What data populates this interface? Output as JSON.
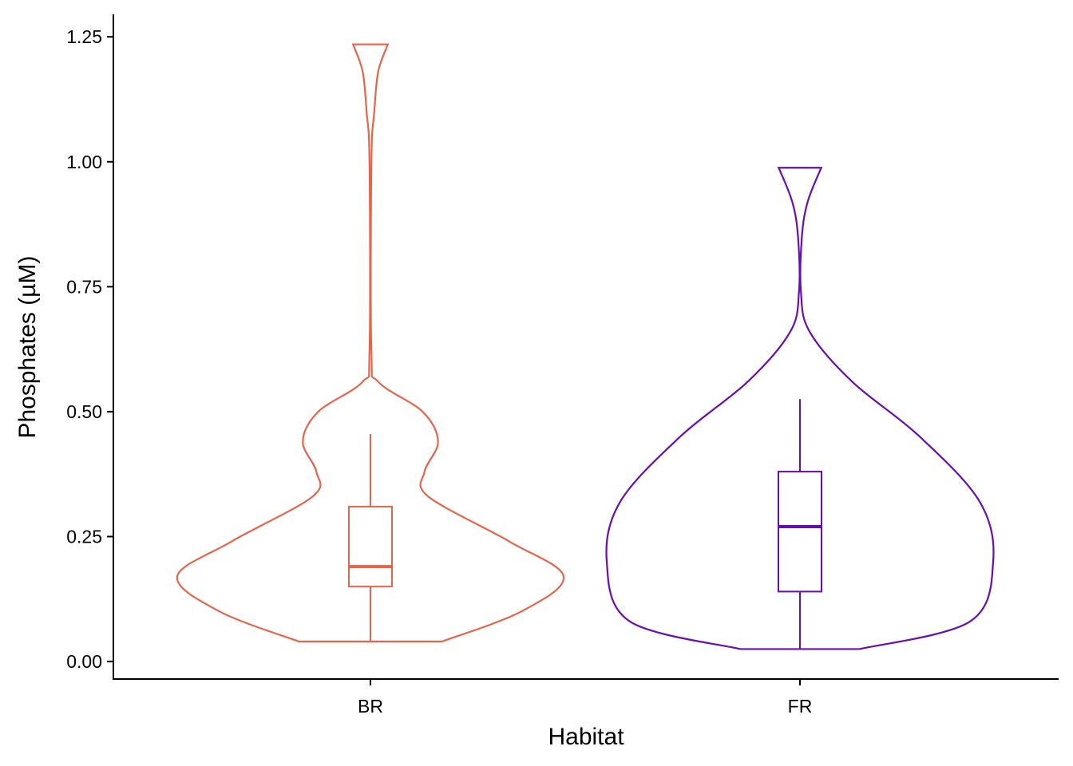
{
  "chart_data": {
    "type": "violin",
    "xlabel": "Habitat",
    "ylabel": "Phosphates (µM)",
    "ylim": [
      -0.035,
      1.295
    ],
    "y_ticks": [
      {
        "value": 0.0,
        "label": "0.00"
      },
      {
        "value": 0.25,
        "label": "0.25"
      },
      {
        "value": 0.5,
        "label": "0.50"
      },
      {
        "value": 0.75,
        "label": "0.75"
      },
      {
        "value": 1.0,
        "label": "1.00"
      },
      {
        "value": 1.25,
        "label": "1.25"
      }
    ],
    "categories": [
      "BR",
      "FR"
    ],
    "grid": false,
    "legend": "none",
    "groups": [
      {
        "category": "BR",
        "color": "#E4654B",
        "box": {
          "whisker_low": 0.04,
          "q1": 0.15,
          "median": 0.19,
          "q3": 0.31,
          "whisker_high": 0.455
        },
        "density_profile": [
          {
            "y": 0.04,
            "w": 0.37
          },
          {
            "y": 0.1,
            "w": 0.78
          },
          {
            "y": 0.17,
            "w": 1.0
          },
          {
            "y": 0.24,
            "w": 0.72
          },
          {
            "y": 0.33,
            "w": 0.3
          },
          {
            "y": 0.38,
            "w": 0.28
          },
          {
            "y": 0.44,
            "w": 0.35
          },
          {
            "y": 0.5,
            "w": 0.27
          },
          {
            "y": 0.56,
            "w": 0.04
          },
          {
            "y": 0.62,
            "w": 0.005
          },
          {
            "y": 1.0,
            "w": 0.005
          },
          {
            "y": 1.1,
            "w": 0.02
          },
          {
            "y": 1.18,
            "w": 0.04
          },
          {
            "y": 1.235,
            "w": 0.09
          }
        ]
      },
      {
        "category": "FR",
        "color": "#6A0DAD",
        "box": {
          "whisker_low": 0.025,
          "q1": 0.14,
          "median": 0.27,
          "q3": 0.38,
          "whisker_high": 0.525
        },
        "density_profile": [
          {
            "y": 0.025,
            "w": 0.31
          },
          {
            "y": 0.08,
            "w": 0.88
          },
          {
            "y": 0.2,
            "w": 1.0
          },
          {
            "y": 0.32,
            "w": 0.93
          },
          {
            "y": 0.45,
            "w": 0.62
          },
          {
            "y": 0.56,
            "w": 0.27
          },
          {
            "y": 0.66,
            "w": 0.05
          },
          {
            "y": 0.74,
            "w": 0.005
          },
          {
            "y": 0.85,
            "w": 0.01
          },
          {
            "y": 0.92,
            "w": 0.04
          },
          {
            "y": 0.988,
            "w": 0.11
          }
        ]
      }
    ]
  }
}
